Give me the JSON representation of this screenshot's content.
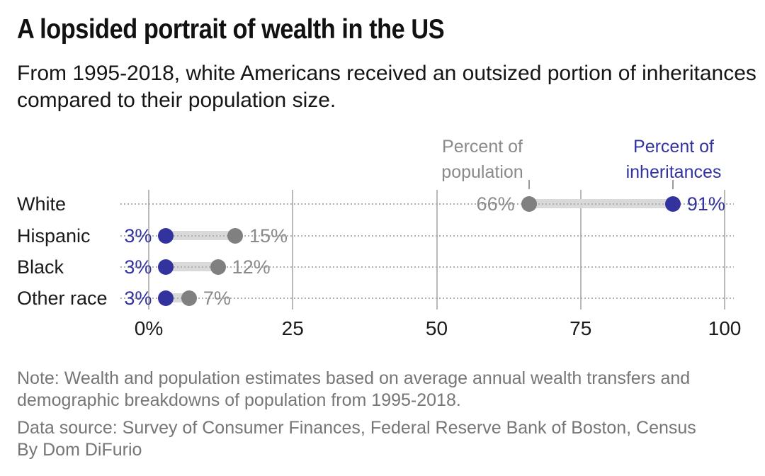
{
  "title": "A lopsided portrait of wealth in the US",
  "subtitle": "From 1995-2018, white Americans received an outsized portion of inheritances compared to their population size.",
  "legend": {
    "population": {
      "line1": "Percent of",
      "line2": "population"
    },
    "inheritances": {
      "line1": "Percent of",
      "line2": "inheritances"
    }
  },
  "colors": {
    "inheritances_blue": "#3333a0",
    "population_dot_gray": "#808080",
    "gray_text": "#8a8a8a",
    "band_gray": "#d9d9d9",
    "gridline_gray": "#b9b9b9",
    "dotted_line_gray": "#b0b0b0"
  },
  "chart_data": {
    "type": "dumbbell",
    "title": "A lopsided portrait of wealth in the US",
    "categories": [
      "White",
      "Hispanic",
      "Black",
      "Other race"
    ],
    "series": [
      {
        "name": "Percent of population",
        "key": "population",
        "dot_color": "#808080",
        "label_color": "#8a8a8a",
        "values": [
          66,
          15,
          12,
          7
        ],
        "labels": [
          "66%",
          "15%",
          "12%",
          "7%"
        ]
      },
      {
        "name": "Percent of inheritances",
        "key": "inheritances",
        "dot_color": "#3333a0",
        "label_color": "#3333a0",
        "values": [
          91,
          3,
          3,
          3
        ],
        "labels": [
          "91%",
          "3%",
          "3%",
          "3%"
        ]
      }
    ],
    "x_ticks": {
      "values": [
        0,
        25,
        50,
        75,
        100
      ],
      "labels": [
        "0%",
        "25",
        "50",
        "75",
        "100"
      ]
    },
    "xlim": [
      0,
      100
    ],
    "grid": "vertical-solid-plus-row-dotted",
    "legend_position": "above-first-row"
  },
  "footer": {
    "note": "Note: Wealth and population estimates based on average annual wealth transfers and demographic breakdowns of population from 1995-2018.",
    "source": "Data source: Survey of Consumer Finances, Federal Reserve Bank of Boston, Census",
    "byline": "By Dom DiFurio"
  }
}
